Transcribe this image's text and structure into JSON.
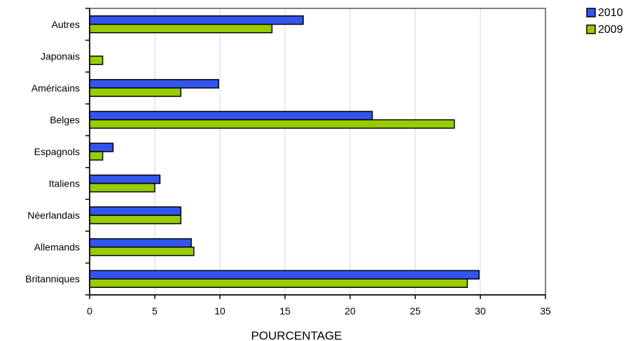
{
  "chart_data": {
    "type": "bar",
    "orientation": "horizontal",
    "categories": [
      "Autres",
      "Japonais",
      "Américains",
      "Belges",
      "Espagnols",
      "Italiens",
      "Néerlandais",
      "Allemands",
      "Britanniques"
    ],
    "series": [
      {
        "name": "2010",
        "color": "#3355ee",
        "values": [
          16.4,
          null,
          9.9,
          21.7,
          1.8,
          5.4,
          7.0,
          7.8,
          29.9
        ]
      },
      {
        "name": "2009",
        "color": "#99cc00",
        "values": [
          14.0,
          1.0,
          7.0,
          28.0,
          1.0,
          5.0,
          7.0,
          8.0,
          29.0
        ]
      }
    ],
    "xlabel": "POURCENTAGE",
    "ylabel": "",
    "title": "",
    "xlim": [
      0,
      35
    ],
    "xticks": [
      "0",
      "5",
      "10",
      "15",
      "20",
      "25",
      "30",
      "35"
    ],
    "grid": true,
    "legend_position": "top-right"
  }
}
